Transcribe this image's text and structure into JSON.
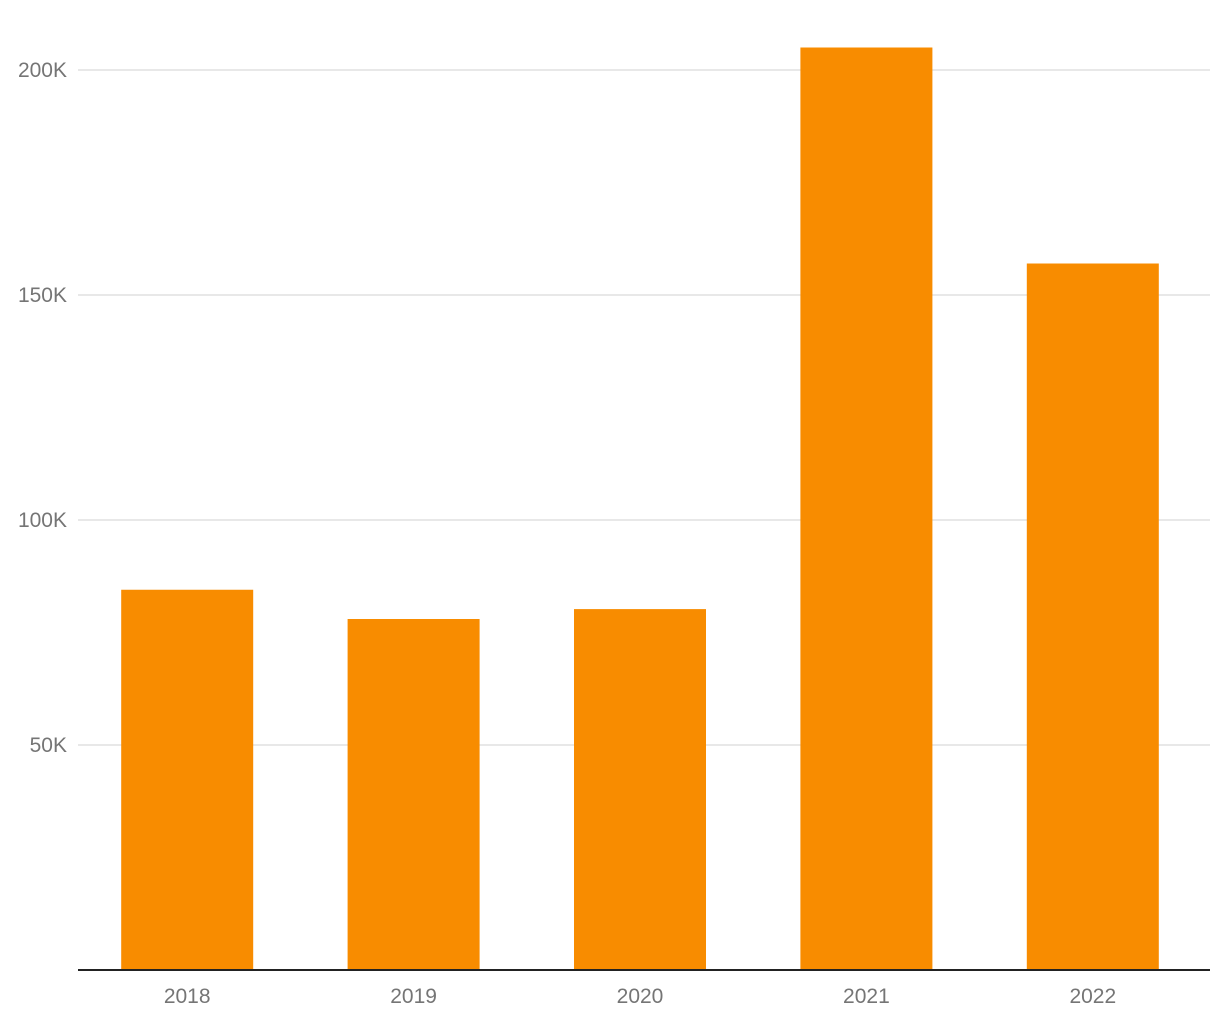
{
  "chart_data": {
    "type": "bar",
    "categories": [
      "2018",
      "2019",
      "2020",
      "2021",
      "2022"
    ],
    "values": [
      84500,
      78000,
      80200,
      205000,
      157000
    ],
    "ylim": [
      0,
      200000
    ],
    "yticks": [
      50000,
      100000,
      150000,
      200000
    ],
    "ytick_labels": [
      "50K",
      "100K",
      "150K",
      "200K"
    ],
    "title": "",
    "xlabel": "",
    "ylabel": "",
    "grid": true,
    "legend": "none",
    "bar_color": "#f88c00",
    "grid_color": "#e0e0e0",
    "axis_color": "#222222",
    "label_color": "#757575"
  }
}
